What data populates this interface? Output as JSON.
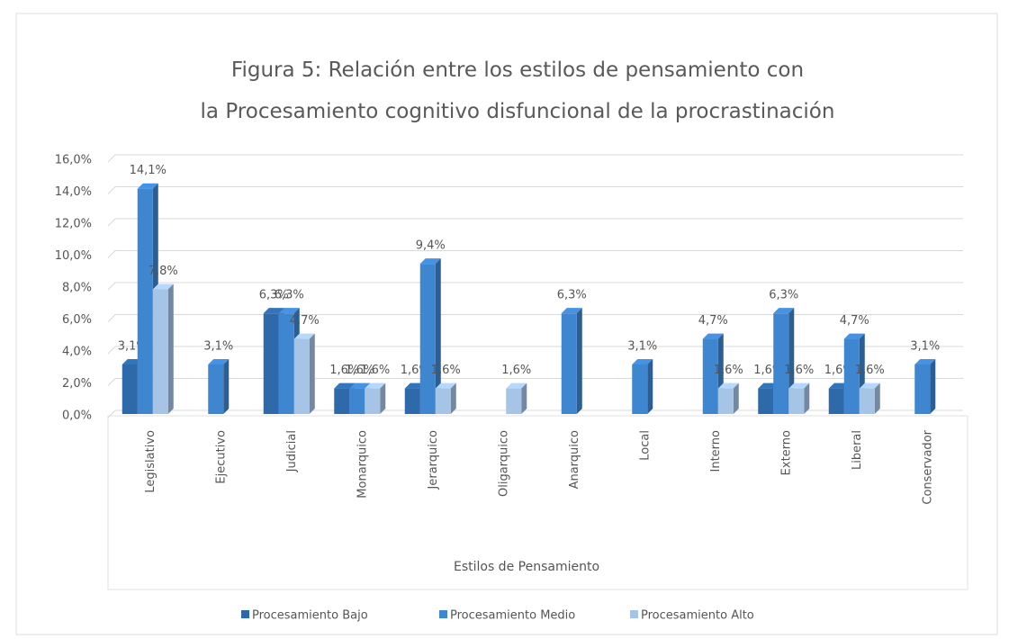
{
  "chart_data": {
    "type": "bar",
    "title": "Figura 5: Relación entre los estilos de pensamiento con la Procesamiento cognitivo disfuncional de la procrastinación",
    "x_label": "Estilos de Pensamiento",
    "categories": [
      "Legislativo",
      "Ejecutivo",
      "Judicial",
      "Monarquico",
      "Jerarquico",
      "Oligarquico",
      "Anarquico",
      "Local",
      "Interno",
      "Externo",
      "Liberal",
      "Conservador"
    ],
    "series": [
      {
        "name": "Procesamiento Bajo",
        "color": "#2e6aa9",
        "values": [
          3.1,
          null,
          6.3,
          1.6,
          1.6,
          null,
          null,
          null,
          null,
          1.6,
          1.6,
          null
        ],
        "value_labels": [
          "3,1%",
          null,
          "6,3%",
          "1,6%",
          "1,6%",
          null,
          null,
          null,
          null,
          "1,6%",
          "1,6%",
          null
        ]
      },
      {
        "name": "Procesamiento Medio",
        "color": "#3f86d1",
        "values": [
          14.1,
          3.1,
          6.3,
          1.6,
          9.4,
          null,
          6.3,
          3.1,
          4.7,
          6.3,
          4.7,
          3.1
        ],
        "value_labels": [
          "14,1%",
          "3,1%",
          "6,3%",
          "1,6%",
          "9,4%",
          null,
          "6,3%",
          "3,1%",
          "4,7%",
          "6,3%",
          "4,7%",
          "3,1%"
        ]
      },
      {
        "name": "Procesamiento Alto",
        "color": "#a6c4e6",
        "values": [
          7.8,
          null,
          4.7,
          1.6,
          1.6,
          1.6,
          null,
          null,
          1.6,
          1.6,
          1.6,
          null
        ],
        "value_labels": [
          "7,8%",
          null,
          "4,7%",
          "1,6%",
          "1,6%",
          "1,6%",
          null,
          null,
          "1,6%",
          "1,6%",
          "1,6%",
          null
        ]
      }
    ],
    "ylim": [
      0,
      16
    ],
    "yticks": [
      {
        "value": 0,
        "label": "0,0%"
      },
      {
        "value": 2,
        "label": "2,0%"
      },
      {
        "value": 4,
        "label": "4,0%"
      },
      {
        "value": 6,
        "label": "6,0%"
      },
      {
        "value": 8,
        "label": "8,0%"
      },
      {
        "value": 10,
        "label": "10,0%"
      },
      {
        "value": 12,
        "label": "12,0%"
      },
      {
        "value": 14,
        "label": "14,0%"
      },
      {
        "value": 16,
        "label": "16,0%"
      }
    ],
    "grid": true,
    "legend": "bottom"
  }
}
